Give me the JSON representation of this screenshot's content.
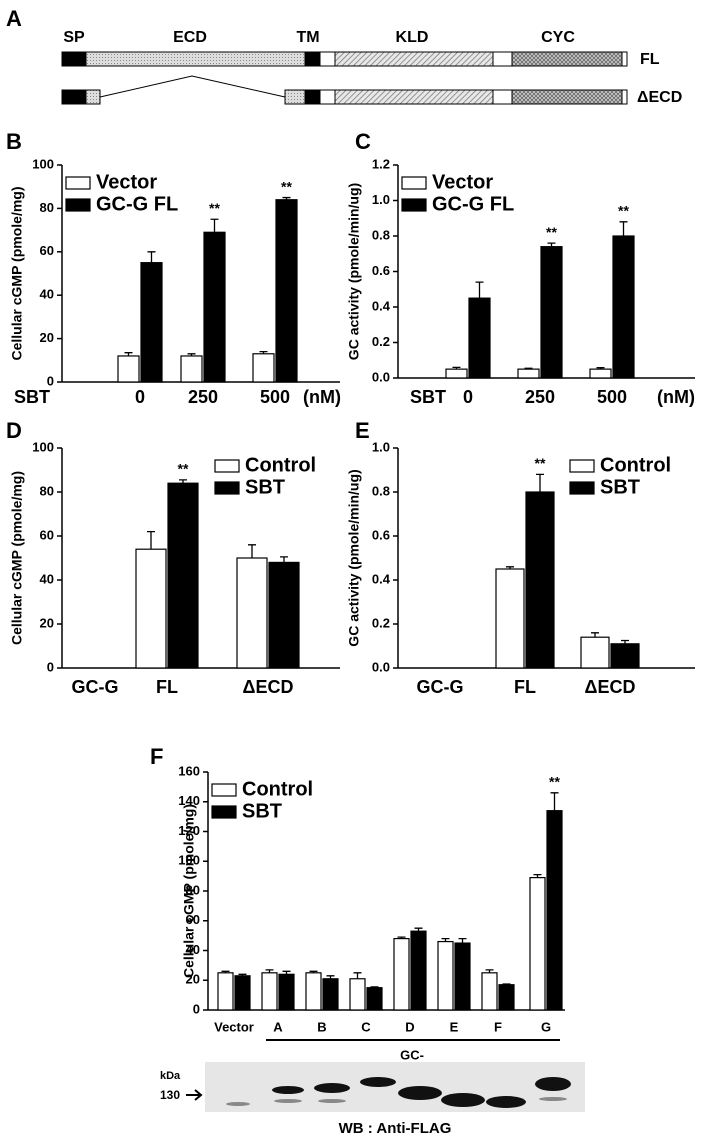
{
  "figure": {
    "panel_labels": [
      "A",
      "B",
      "C",
      "D",
      "E",
      "F"
    ],
    "domains": {
      "labels": [
        "SP",
        "ECD",
        "TM",
        "KLD",
        "CYC"
      ],
      "constructs": [
        "FL",
        "ΔECD"
      ]
    },
    "western_blot": {
      "unit": "kDa",
      "marker": "130",
      "caption": "WB : Anti-FLAG"
    }
  },
  "chart_data": [
    {
      "type": "bar",
      "ylabel": "Cellular cGMP (pmole/mg)",
      "axis_label": "SBT",
      "unit": "(nM)",
      "categories": [
        "0",
        "250",
        "500"
      ],
      "legend": "upper left",
      "ylim": [
        0,
        100
      ],
      "yticks": [
        0,
        20,
        40,
        60,
        80,
        100
      ],
      "annotations": [
        null,
        "**",
        "**"
      ],
      "series": [
        {
          "name": "Vector",
          "color": "#ffffff",
          "values": [
            12,
            12,
            13
          ],
          "errors": [
            1.5,
            1,
            1
          ]
        },
        {
          "name": "GC-G FL",
          "color": "#000000",
          "values": [
            55,
            69,
            84
          ],
          "errors": [
            5,
            6,
            1
          ]
        }
      ]
    },
    {
      "type": "bar",
      "ylabel": "GC activity (pmole/min/ug)",
      "axis_label": "SBT",
      "unit": "(nM)",
      "categories": [
        "0",
        "250",
        "500"
      ],
      "legend": "upper left",
      "ylim": [
        0,
        1.2
      ],
      "yticks": [
        {
          "value": 0,
          "label": "0.0"
        },
        0.2,
        0.4,
        0.6,
        0.8,
        {
          "value": 1,
          "label": "1.0"
        },
        1.2
      ],
      "annotations": [
        null,
        "**",
        "**"
      ],
      "series": [
        {
          "name": "Vector",
          "color": "#ffffff",
          "values": [
            0.05,
            0.05,
            0.05
          ],
          "errors": [
            0.01,
            0.005,
            0.008
          ]
        },
        {
          "name": "GC-G FL",
          "color": "#000000",
          "values": [
            0.45,
            0.74,
            0.8
          ],
          "errors": [
            0.09,
            0.02,
            0.08
          ]
        }
      ]
    },
    {
      "type": "bar",
      "ylabel": "Cellular cGMP (pmole/mg)",
      "axis_label": "GC-G",
      "categories": [
        "FL",
        "ΔECD"
      ],
      "legend": "upper right",
      "ylim": [
        0,
        100
      ],
      "yticks": [
        0,
        20,
        40,
        60,
        80,
        100
      ],
      "annotations": [
        "**",
        null
      ],
      "series": [
        {
          "name": "Control",
          "color": "#ffffff",
          "values": [
            54,
            50
          ],
          "errors": [
            8,
            6
          ]
        },
        {
          "name": "SBT",
          "color": "#000000",
          "values": [
            84,
            48
          ],
          "errors": [
            1.5,
            2.5
          ]
        }
      ]
    },
    {
      "type": "bar",
      "ylabel": "GC activity (pmole/min/ug)",
      "axis_label": "GC-G",
      "categories": [
        "FL",
        "ΔECD"
      ],
      "legend": "upper right",
      "ylim": [
        0,
        1
      ],
      "yticks": [
        {
          "value": 0,
          "label": "0.0"
        },
        0.2,
        0.4,
        0.6,
        0.8,
        {
          "value": 1,
          "label": "1.0"
        }
      ],
      "annotations": [
        "**",
        null
      ],
      "series": [
        {
          "name": "Control",
          "color": "#ffffff",
          "values": [
            0.45,
            0.14
          ],
          "errors": [
            0.01,
            0.02
          ]
        },
        {
          "name": "SBT",
          "color": "#000000",
          "values": [
            0.8,
            0.11
          ],
          "errors": [
            0.08,
            0.015
          ]
        }
      ]
    },
    {
      "type": "bar",
      "ylabel": "Cellular cGMP (pmole/mg)",
      "group_label": "GC-",
      "categories": [
        "Vector",
        "A",
        "B",
        "C",
        "D",
        "E",
        "F",
        "G"
      ],
      "legend": "upper left",
      "ylim": [
        0,
        160
      ],
      "yticks": [
        0,
        20,
        40,
        60,
        80,
        100,
        120,
        140,
        160
      ],
      "annotations": [
        null,
        null,
        null,
        null,
        null,
        null,
        null,
        "**"
      ],
      "series": [
        {
          "name": "Control",
          "color": "#ffffff",
          "values": [
            25,
            25,
            25,
            21,
            48,
            46,
            25,
            89
          ],
          "errors": [
            1,
            2,
            1,
            4,
            1,
            2,
            2,
            2
          ]
        },
        {
          "name": "SBT",
          "color": "#000000",
          "values": [
            23,
            24,
            21,
            15,
            53,
            45,
            17,
            134
          ],
          "errors": [
            1,
            2,
            2,
            0.5,
            2,
            3,
            0.5,
            12
          ]
        }
      ]
    }
  ]
}
